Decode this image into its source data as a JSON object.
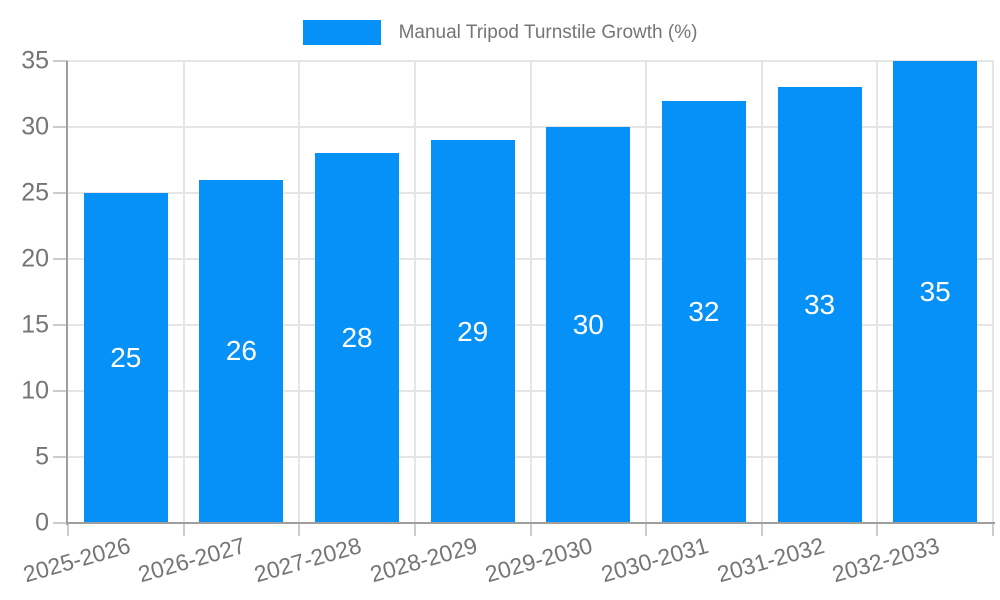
{
  "legend": {
    "label": "Manual Tripod Turnstile Growth (%)"
  },
  "chart_data": {
    "type": "bar",
    "title": "Manual Tripod Turnstile Growth (%)",
    "categories": [
      "2025-2026",
      "2026-2027",
      "2027-2028",
      "2028-2029",
      "2029-2030",
      "2030-2031",
      "2031-2032",
      "2032-2033"
    ],
    "series": [
      {
        "name": "Manual Tripod Turnstile Growth (%)",
        "values": [
          25,
          26,
          28,
          29,
          30,
          32,
          33,
          35
        ]
      }
    ],
    "xlabel": "",
    "ylabel": "",
    "ylim": [
      0,
      35
    ],
    "ytick_step": 5,
    "yticks": [
      0,
      5,
      10,
      15,
      20,
      25,
      30,
      35
    ],
    "grid": true,
    "legend_position": "top-center",
    "value_labels": "inside-center",
    "bar_color": "#0591F8",
    "value_label_color": "#FFFFFF"
  },
  "colors": {
    "background": "#FFFFFF",
    "bar": "#0591F8",
    "grid": "#E5E5E5",
    "axis": "#9E9E9E",
    "tick_text": "#757575",
    "value_text": "#FFFFFF"
  }
}
